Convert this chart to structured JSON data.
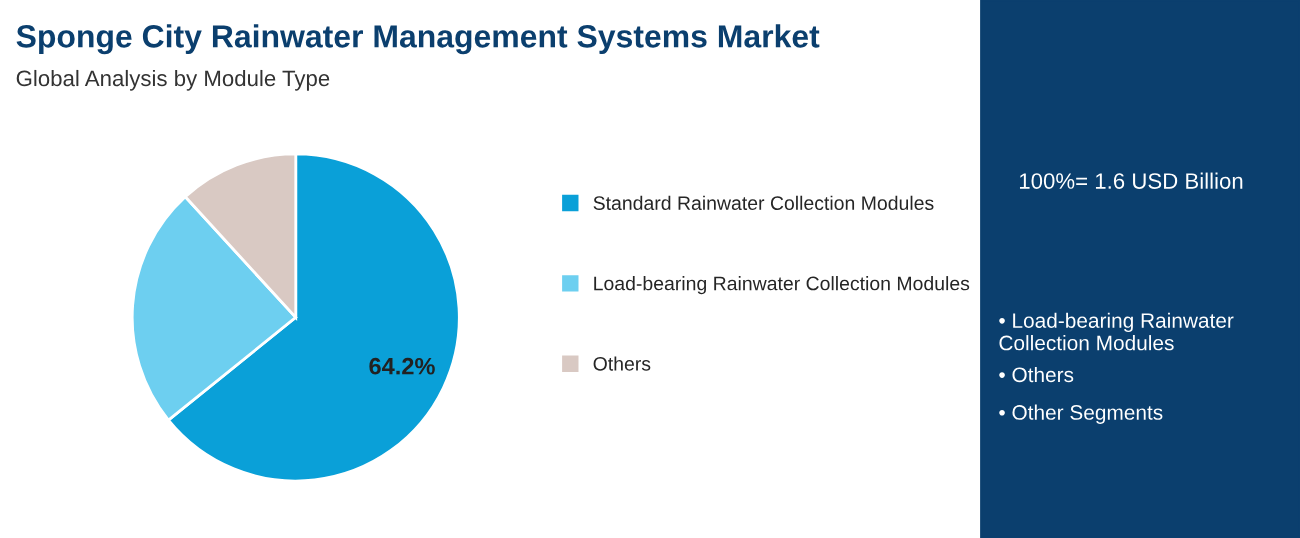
{
  "chart_data": {
    "type": "pie",
    "title": "Sponge City Rainwater Management Systems Market",
    "subtitle": "Global Analysis by Module Type",
    "categories": [
      "Standard Rainwater Collection Modules",
      "Load-bearing Rainwater Collection Modules",
      "Others"
    ],
    "values": [
      64.2,
      24.0,
      11.8
    ],
    "colors": [
      "#0aa0d8",
      "#6dcff0",
      "#d9c9c3"
    ],
    "value_labels": [
      "64.2%",
      null,
      null
    ],
    "legend": "right",
    "annotations": [
      "100%= 1.6 USD Billion",
      "• Load-bearing Rainwater Collection Modules",
      "• Others",
      "• Other Segments"
    ]
  }
}
